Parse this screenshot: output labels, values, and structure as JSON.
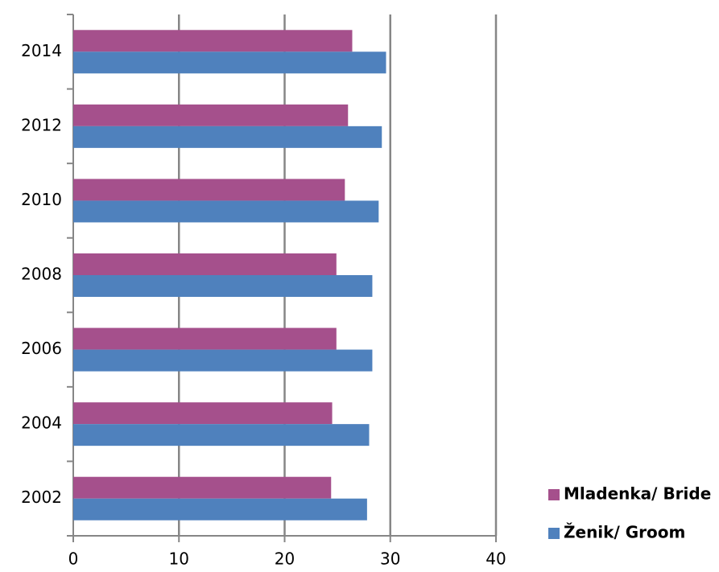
{
  "chart_data": {
    "type": "hbar",
    "categories": [
      "2002",
      "2004",
      "2006",
      "2008",
      "2010",
      "2012",
      "2014"
    ],
    "series": [
      {
        "name": "Mladenka/ Bride",
        "color": "#a5508c",
        "values": [
          24.4,
          24.5,
          24.9,
          24.9,
          25.7,
          26.0,
          26.4
        ]
      },
      {
        "name": "Ženik/ Groom",
        "color": "#4f81bd",
        "values": [
          27.8,
          28.0,
          28.3,
          28.3,
          28.9,
          29.2,
          29.6
        ]
      }
    ],
    "xlim": [
      0,
      40
    ],
    "xticks": [
      0,
      10,
      20,
      30,
      40
    ],
    "grid": true,
    "legend": "right"
  }
}
